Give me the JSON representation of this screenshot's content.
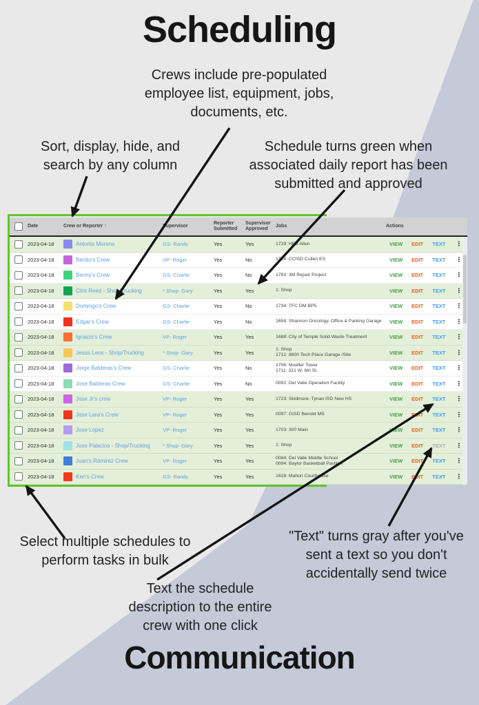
{
  "header": {
    "title": "Scheduling"
  },
  "footer": {
    "title": "Communication"
  },
  "annotations": {
    "crews": "Crews include pre-populated employee list, equipment, jobs, documents, etc.",
    "sort": "Sort, display, hide, and search by any column",
    "green": "Schedule turns green when associated daily report has been submitted and approved",
    "bulk": "Select multiple schedules to perform tasks in bulk",
    "text_click": "Text the schedule description to the entire crew with one click",
    "text_gray": "\"Text\" turns gray after you've sent a text so you don't accidentally send twice"
  },
  "colors": {
    "background": "#e9e9e9",
    "diagonal_shape": "#c5cad8",
    "highlight_border": "#63c22c",
    "highlight_row": "#e4efd9",
    "header_bg": "#d2d2d2",
    "link": "#5d9fdd",
    "view": "#43a047",
    "edit": "#f4581f",
    "text": "#3e9ef0",
    "text_sent": "#a9a9a9"
  },
  "table": {
    "header": {
      "date": "Date",
      "crew": "Crew or Reporter",
      "sort_indicator": "↑",
      "supervisor": "Supervisor",
      "reporter_submitted": "Reporter Submitted",
      "supervisor_approved": "Supervisor Approved",
      "jobs": "Jobs",
      "actions": "Actions"
    },
    "action_labels": {
      "view": "VIEW",
      "edit": "EDIT",
      "text": "TEXT"
    },
    "more_icon": "⋮",
    "rows": [
      {
        "date": "2023-04-18",
        "crew": "Antonio Moreno",
        "color": "#8a8aee",
        "supervisor": "GS- Randy",
        "reporter_submitted": "Yes",
        "supervisor_approved": "Yes",
        "jobs": [
          "1729: HEB Allen"
        ],
        "highlighted": true,
        "text_sent": false
      },
      {
        "date": "2023-04-18",
        "crew": "Benito's Crew",
        "color": "#c266e0",
        "supervisor": "VP- Roger",
        "reporter_submitted": "Yes",
        "supervisor_approved": "No",
        "jobs": [
          "1714: CCISD Cullen ES"
        ],
        "highlighted": false,
        "text_sent": false
      },
      {
        "date": "2023-04-18",
        "crew": "Benny's Crew",
        "color": "#3ed47e",
        "supervisor": "GS- Charlie",
        "reporter_submitted": "Yes",
        "supervisor_approved": "No",
        "jobs": [
          "1763: 3M Repair Project"
        ],
        "highlighted": false,
        "text_sent": false
      },
      {
        "date": "2023-04-18",
        "crew": "Clint Reed - Shop/Trucking",
        "color": "#12a357",
        "supervisor": "* Shop- Gary",
        "reporter_submitted": "Yes",
        "supervisor_approved": "Yes",
        "jobs": [
          "1: Shop"
        ],
        "highlighted": true,
        "text_sent": false
      },
      {
        "date": "2023-04-18",
        "crew": "Domingo's Crew",
        "color": "#f5e06e",
        "supervisor": "GS- Charlie",
        "reporter_submitted": "Yes",
        "supervisor_approved": "No",
        "jobs": [
          "1734: TFC DM BP5"
        ],
        "highlighted": false,
        "text_sent": false
      },
      {
        "date": "2023-04-18",
        "crew": "Edgar's Crew",
        "color": "#f5311f",
        "supervisor": "GS- Charlie",
        "reporter_submitted": "Yes",
        "supervisor_approved": "No",
        "jobs": [
          "1658: Shannon Oncology, Office & Parking Garage"
        ],
        "highlighted": false,
        "text_sent": false
      },
      {
        "date": "2023-04-18",
        "crew": "Ignacio's Crew",
        "color": "#fa7034",
        "supervisor": "VP- Roger",
        "reporter_submitted": "Yes",
        "supervisor_approved": "Yes",
        "jobs": [
          "1688: City of Temple Solid Waste Treatment"
        ],
        "highlighted": true,
        "text_sent": false
      },
      {
        "date": "2023-04-18",
        "crew": "Jesus Leos - Shop/Trucking",
        "color": "#f6c759",
        "supervisor": "* Shop- Gary",
        "reporter_submitted": "Yes",
        "supervisor_approved": "Yes",
        "jobs": [
          "1: Shop",
          "1712: 8800 Tech Place Garage /Site"
        ],
        "highlighted": true,
        "text_sent": false
      },
      {
        "date": "2023-04-18",
        "crew": "Jorge Balderas's Crew",
        "color": "#9e6ad9",
        "supervisor": "GS- Charlie",
        "reporter_submitted": "Yes",
        "supervisor_approved": "No",
        "jobs": [
          "1706: Mueller Tower",
          "1711: 321 W. 6th St."
        ],
        "highlighted": false,
        "text_sent": false
      },
      {
        "date": "2023-04-18",
        "crew": "Jose Balderas Crew",
        "color": "#8bdcb4",
        "supervisor": "GS- Charlie",
        "reporter_submitted": "Yes",
        "supervisor_approved": "No",
        "jobs": [
          "0092: Del Valle Operation Facility"
        ],
        "highlighted": false,
        "text_sent": false
      },
      {
        "date": "2023-04-18",
        "crew": "Jose Jr's crew",
        "color": "#cc64e4",
        "supervisor": "VP- Roger",
        "reporter_submitted": "Yes",
        "supervisor_approved": "Yes",
        "jobs": [
          "1723: Skidmore- Tynan ISD New HS"
        ],
        "highlighted": true,
        "text_sent": false
      },
      {
        "date": "2023-04-18",
        "crew": "Jose Lara's Crew",
        "color": "#f33520",
        "supervisor": "VP- Roger",
        "reporter_submitted": "Yes",
        "supervisor_approved": "Yes",
        "jobs": [
          "0097: GISD Benold MS"
        ],
        "highlighted": true,
        "text_sent": false
      },
      {
        "date": "2023-04-18",
        "crew": "Jose Lopez",
        "color": "#b79af2",
        "supervisor": "VP- Roger",
        "reporter_submitted": "Yes",
        "supervisor_approved": "Yes",
        "jobs": [
          "1703: 300 Main"
        ],
        "highlighted": true,
        "text_sent": false
      },
      {
        "date": "2023-04-18",
        "crew": "Jose Palacios - Shop/Trucking",
        "color": "#9ce4e4",
        "supervisor": "* Shop- Gary",
        "reporter_submitted": "Yes",
        "supervisor_approved": "Yes",
        "jobs": [
          "1: Shop"
        ],
        "highlighted": true,
        "text_sent": true
      },
      {
        "date": "2023-04-18",
        "crew": "Juan's Ramirez Crew",
        "color": "#3f7fd9",
        "supervisor": "VP- Roger",
        "reporter_submitted": "Yes",
        "supervisor_approved": "Yes",
        "jobs": [
          "0084: Del Valle Middle School",
          "0094: Baylor Basketball Pavilion"
        ],
        "highlighted": true,
        "text_sent": false
      },
      {
        "date": "2023-04-18",
        "crew": "Ken's Crew",
        "color": "#f4391f",
        "supervisor": "GS- Randy",
        "reporter_submitted": "Yes",
        "supervisor_approved": "Yes",
        "jobs": [
          "1628: Mahon Courthouse"
        ],
        "highlighted": true,
        "text_sent": false
      }
    ]
  }
}
